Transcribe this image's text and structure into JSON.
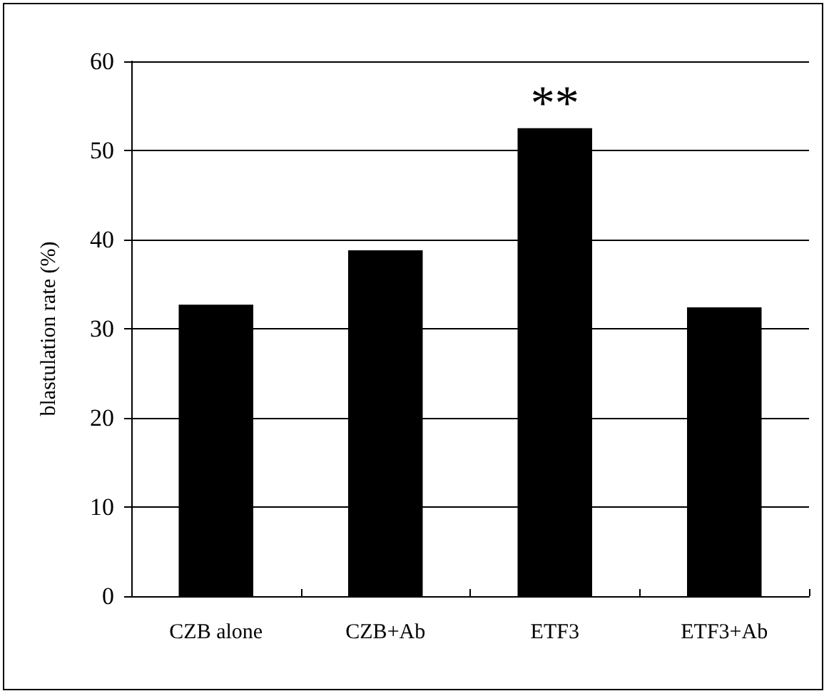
{
  "chart_data": {
    "type": "bar",
    "ylabel": "blastulation rate (%)",
    "categories": [
      "CZB alone",
      "CZB+Ab",
      "ETF3",
      "ETF3+Ab"
    ],
    "values": [
      32.7,
      38.8,
      52.5,
      32.4
    ],
    "color": "#000000",
    "ylim": [
      0,
      60
    ],
    "yticks": [
      0,
      10,
      20,
      30,
      40,
      50,
      60
    ],
    "grid": "y",
    "annotations": [
      {
        "text": "**",
        "x": "ETF3",
        "y": 52.5
      }
    ]
  }
}
